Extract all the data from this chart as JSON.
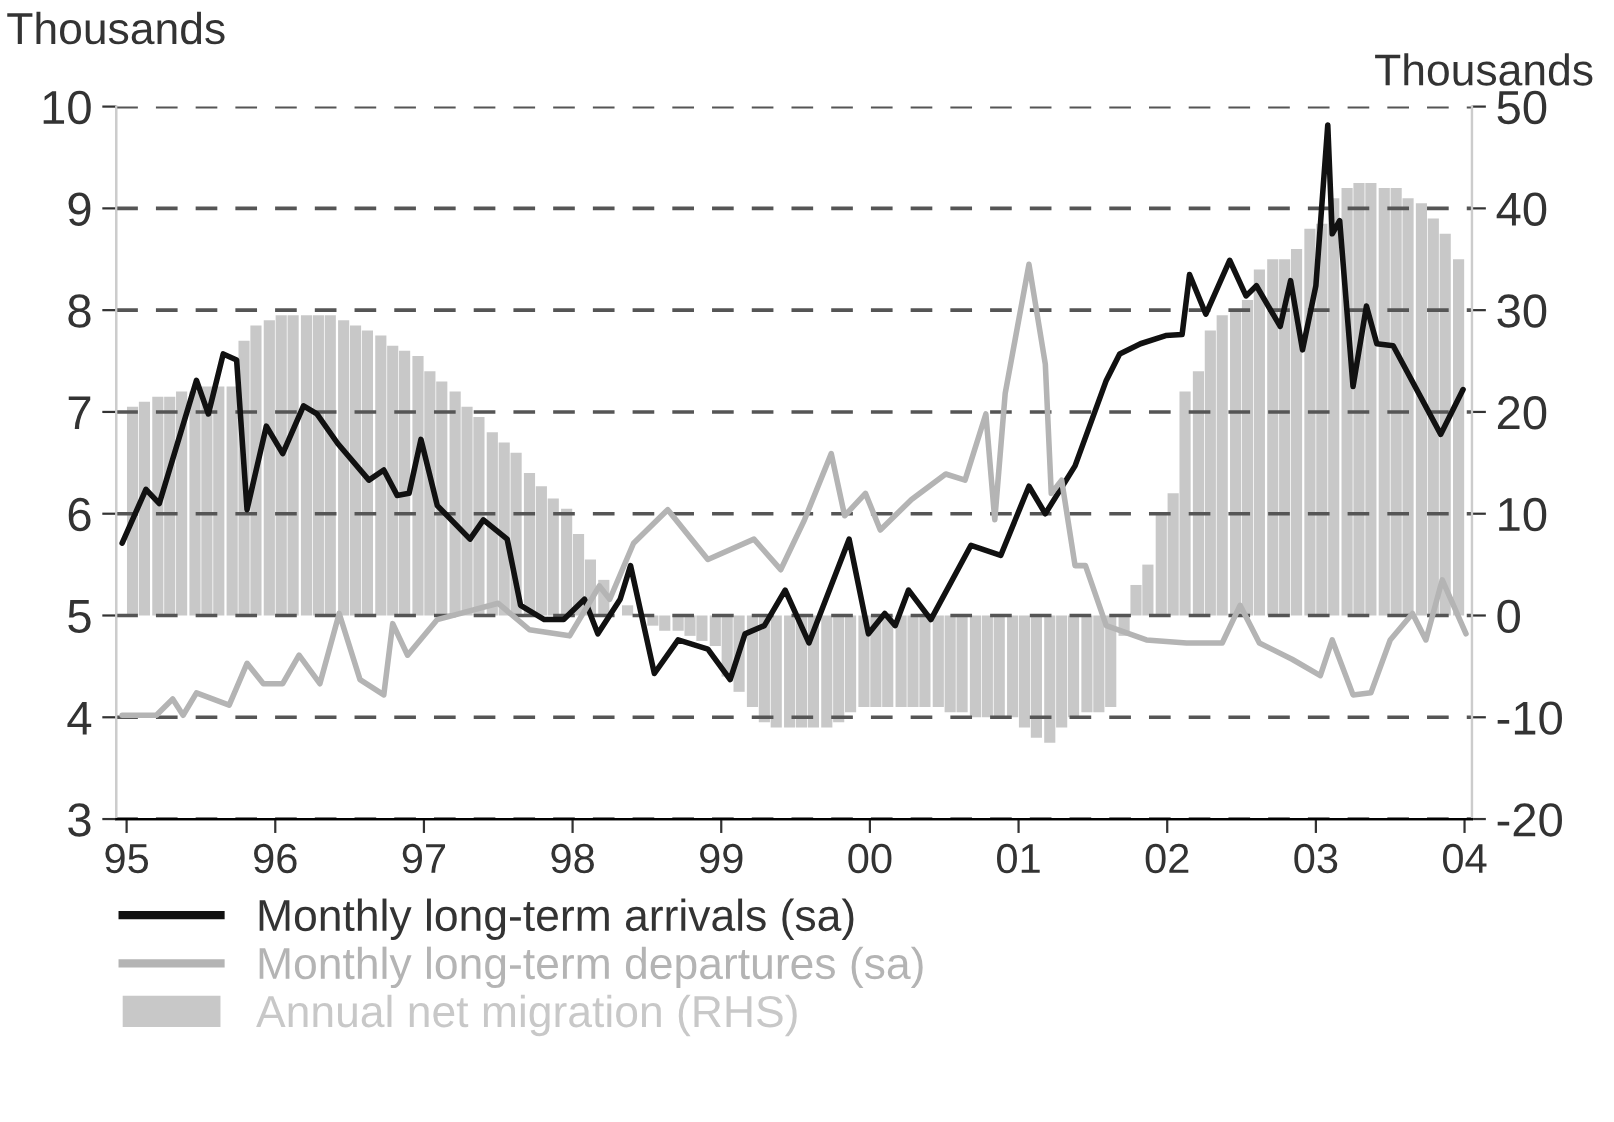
{
  "chart_data": {
    "type": "line",
    "ylabel": "Thousands",
    "y2label": "Thousands",
    "xlim": [
      1994.93,
      2004.05
    ],
    "xticks": [
      {
        "value": 1995,
        "label": "95"
      },
      {
        "value": 1996,
        "label": "96"
      },
      {
        "value": 1997,
        "label": "97"
      },
      {
        "value": 1998,
        "label": "98"
      },
      {
        "value": 1999,
        "label": "99"
      },
      {
        "value": 2000,
        "label": "00"
      },
      {
        "value": 2001,
        "label": "01"
      },
      {
        "value": 2002,
        "label": "02"
      },
      {
        "value": 2003,
        "label": "03"
      },
      {
        "value": 2004,
        "label": "04"
      }
    ],
    "ylim": [
      3,
      10
    ],
    "yticks": [
      3,
      4,
      5,
      6,
      7,
      8,
      9,
      10
    ],
    "y2lim": [
      -20,
      50
    ],
    "y2ticks": [
      -20,
      -10,
      0,
      10,
      20,
      30,
      40,
      50
    ],
    "grid": "y",
    "legend": "bottom",
    "marker": "none",
    "series": [
      {
        "name": "Monthly long-term arrivals (sa)",
        "color": "#111111",
        "x": [
          1994.97,
          1995.13,
          1995.22,
          1995.47,
          1995.55,
          1995.65,
          1995.74,
          1995.81,
          1995.94,
          1996.05,
          1996.19,
          1996.28,
          1996.42,
          1996.63,
          1996.73,
          1996.82,
          1996.9,
          1996.98,
          1997.09,
          1997.31,
          1997.4,
          1997.56,
          1997.65,
          1997.81,
          1997.94,
          1998.08,
          1998.17,
          1998.32,
          1998.39,
          1998.55,
          1998.71,
          1998.91,
          1999.06,
          1999.16,
          1999.29,
          1999.43,
          1999.59,
          1999.86,
          1999.99,
          2000.1,
          2000.17,
          2000.26,
          2000.41,
          2000.68,
          2000.88,
          2001.07,
          2001.18,
          2001.38,
          2001.59,
          2001.68,
          2001.82,
          2001.99,
          2002.1,
          2002.15,
          2002.26,
          2002.42,
          2002.53,
          2002.6,
          2002.76,
          2002.83,
          2002.91,
          2003.0,
          2003.08,
          2003.11,
          2003.16,
          2003.25,
          2003.34,
          2003.41,
          2003.52,
          2003.84,
          2003.99
        ],
        "values": [
          5.71,
          6.24,
          6.1,
          7.31,
          6.98,
          7.57,
          7.51,
          6.04,
          6.86,
          6.59,
          7.06,
          6.98,
          6.69,
          6.33,
          6.43,
          6.18,
          6.2,
          6.73,
          6.08,
          5.75,
          5.94,
          5.75,
          5.1,
          4.96,
          4.96,
          5.16,
          4.82,
          5.16,
          5.49,
          4.43,
          4.76,
          4.67,
          4.37,
          4.82,
          4.9,
          5.25,
          4.73,
          5.75,
          4.82,
          5.02,
          4.9,
          5.25,
          4.96,
          5.69,
          5.59,
          6.27,
          6.0,
          6.47,
          7.31,
          7.57,
          7.67,
          7.75,
          7.76,
          8.35,
          7.96,
          8.49,
          8.14,
          8.24,
          7.84,
          8.29,
          7.61,
          8.24,
          9.82,
          8.75,
          8.88,
          7.25,
          8.04,
          7.67,
          7.65,
          6.78,
          7.22
        ]
      },
      {
        "name": "Monthly long-term departures (sa)",
        "color": "#b4b4b4",
        "x": [
          1994.97,
          1995.2,
          1995.31,
          1995.38,
          1995.47,
          1995.69,
          1995.81,
          1995.92,
          1996.05,
          1996.16,
          1996.3,
          1996.43,
          1996.57,
          1996.73,
          1996.79,
          1996.89,
          1997.09,
          1997.5,
          1997.71,
          1997.98,
          1998.18,
          1998.25,
          1998.41,
          1998.64,
          1998.91,
          1999.22,
          1999.4,
          1999.56,
          1999.74,
          1999.83,
          1999.97,
          2000.07,
          2000.28,
          2000.51,
          2000.64,
          2000.78,
          2000.84,
          2000.91,
          2001.07,
          2001.18,
          2001.22,
          2001.29,
          2001.38,
          2001.45,
          2001.59,
          2001.86,
          2002.13,
          2002.37,
          2002.49,
          2002.62,
          2002.84,
          2003.03,
          2003.11,
          2003.25,
          2003.37,
          2003.5,
          2003.65,
          2003.74,
          2003.85,
          2004.01
        ],
        "values": [
          4.02,
          4.02,
          4.18,
          4.02,
          4.24,
          4.12,
          4.53,
          4.33,
          4.33,
          4.61,
          4.33,
          5.02,
          4.37,
          4.22,
          4.92,
          4.61,
          4.96,
          5.12,
          4.86,
          4.8,
          5.29,
          5.16,
          5.71,
          6.04,
          5.55,
          5.75,
          5.45,
          5.94,
          6.59,
          5.98,
          6.2,
          5.84,
          6.14,
          6.39,
          6.33,
          6.98,
          5.94,
          7.18,
          8.45,
          7.47,
          6.2,
          6.33,
          5.49,
          5.49,
          4.9,
          4.76,
          4.73,
          4.73,
          5.1,
          4.73,
          4.57,
          4.41,
          4.76,
          4.22,
          4.24,
          4.76,
          5.02,
          4.76,
          5.35,
          4.82
        ]
      },
      {
        "name": "Annual net migration (RHS)",
        "type": "bar",
        "axis": "y2",
        "color": "#c8c8c8",
        "x": [
          1995.04,
          1995.12,
          1995.21,
          1995.29,
          1995.37,
          1995.46,
          1995.54,
          1995.62,
          1995.71,
          1995.79,
          1995.87,
          1995.96,
          1996.04,
          1996.12,
          1996.21,
          1996.29,
          1996.37,
          1996.46,
          1996.54,
          1996.62,
          1996.71,
          1996.79,
          1996.87,
          1996.96,
          1997.04,
          1997.12,
          1997.21,
          1997.29,
          1997.37,
          1997.46,
          1997.54,
          1997.62,
          1997.71,
          1997.79,
          1997.87,
          1997.96,
          1998.04,
          1998.12,
          1998.21,
          1998.29,
          1998.37,
          1998.46,
          1998.54,
          1998.62,
          1998.71,
          1998.79,
          1998.87,
          1998.96,
          1999.04,
          1999.12,
          1999.21,
          1999.29,
          1999.37,
          1999.46,
          1999.54,
          1999.62,
          1999.71,
          1999.79,
          1999.87,
          1999.96,
          2000.04,
          2000.12,
          2000.21,
          2000.29,
          2000.37,
          2000.46,
          2000.54,
          2000.62,
          2000.71,
          2000.79,
          2000.87,
          2000.96,
          2001.04,
          2001.12,
          2001.21,
          2001.29,
          2001.37,
          2001.46,
          2001.54,
          2001.62,
          2001.71,
          2001.79,
          2001.87,
          2001.96,
          2002.04,
          2002.12,
          2002.21,
          2002.29,
          2002.37,
          2002.46,
          2002.54,
          2002.62,
          2002.71,
          2002.79,
          2002.87,
          2002.96,
          2003.04,
          2003.12,
          2003.21,
          2003.29,
          2003.37,
          2003.46,
          2003.54,
          2003.62,
          2003.71,
          2003.79,
          2003.87,
          2003.96
        ],
        "values": [
          20.5,
          21,
          21.5,
          21.5,
          22,
          22,
          22.5,
          22.5,
          22.5,
          27,
          28.5,
          29,
          29.5,
          29.5,
          29.5,
          29.5,
          29.5,
          29,
          28.5,
          28,
          27.5,
          26.5,
          26,
          25.5,
          24,
          23,
          22,
          20.5,
          19.5,
          18,
          17,
          16,
          14,
          12.7,
          11.5,
          10.5,
          8,
          5.5,
          3.5,
          null,
          1,
          null,
          -1,
          -1.5,
          -1.5,
          -2,
          -2.5,
          -3,
          -6,
          -7.5,
          -9,
          -10.5,
          -11,
          -11,
          -11,
          -11,
          -11,
          -10.5,
          -9.5,
          -9,
          -9,
          -9,
          -9,
          -9,
          -9,
          -9,
          -9.5,
          -9.5,
          -10,
          -10,
          -10,
          -10,
          -11,
          -12,
          -12.5,
          -11,
          -10,
          -9.5,
          -9.5,
          -9,
          -2,
          3,
          5,
          10,
          12,
          22,
          24,
          28,
          29.5,
          30,
          31,
          34,
          35,
          35,
          36,
          38,
          38.5,
          41,
          42,
          42.5,
          42.5,
          42,
          42,
          41,
          40.5,
          39,
          37.5,
          35
        ]
      }
    ]
  }
}
